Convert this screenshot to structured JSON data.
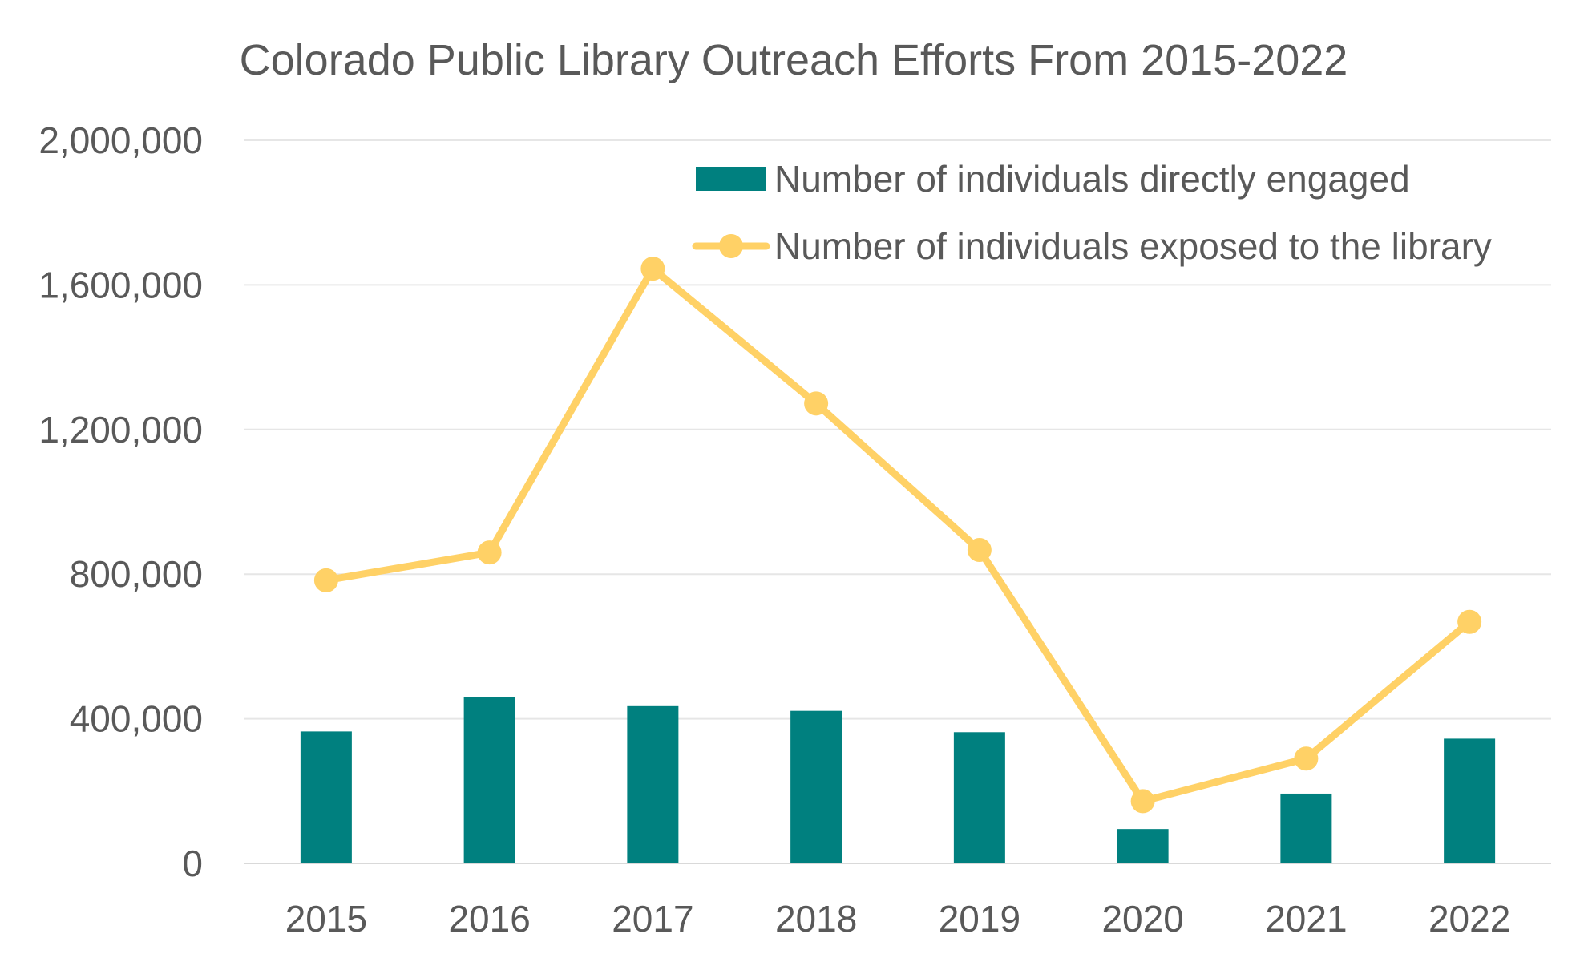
{
  "colors": {
    "bar": "#00807F",
    "line": "#FFD166",
    "grid": "#e6e6e6",
    "axis": "#d9d9d9",
    "text": "#595959"
  },
  "chart_data": {
    "type": "bar",
    "title": "Colorado Public Library Outreach Efforts From 2015-2022",
    "xlabel": "",
    "ylabel": "",
    "categories": [
      "2015",
      "2016",
      "2017",
      "2018",
      "2019",
      "2020",
      "2021",
      "2022"
    ],
    "ylim": [
      0,
      2000000
    ],
    "yticks": [
      0,
      400000,
      800000,
      1200000,
      1600000,
      2000000
    ],
    "ytick_labels": [
      "0",
      "400,000",
      "800,000",
      "1,200,000",
      "1,600,000",
      "2,000,000"
    ],
    "grid": true,
    "legend_position": "top-right",
    "series": [
      {
        "name": "Number of individuals directly engaged",
        "type": "bar",
        "values": [
          365000,
          460000,
          435000,
          422000,
          363000,
          95000,
          193000,
          345000
        ]
      },
      {
        "name": "Number of individuals exposed to the library",
        "type": "line",
        "values": [
          783000,
          860000,
          1645000,
          1272000,
          867000,
          172000,
          290000,
          668000
        ]
      }
    ]
  }
}
